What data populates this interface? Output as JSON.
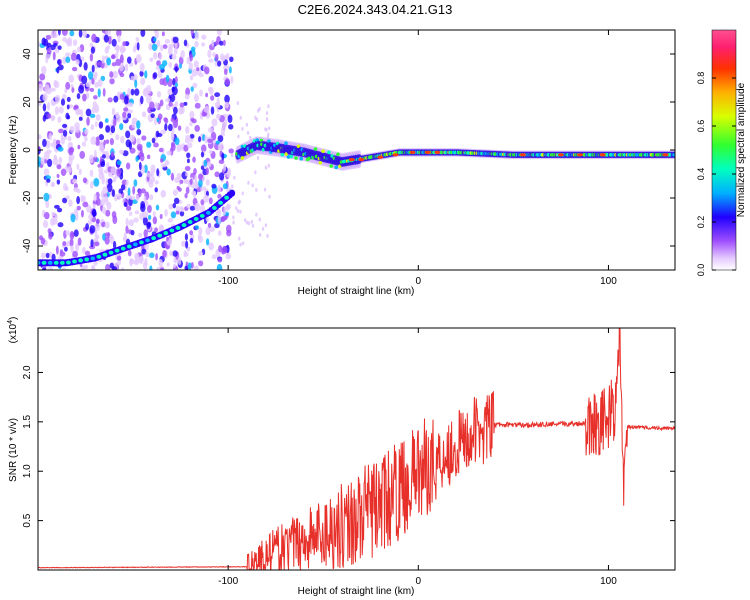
{
  "title": "C2E6.2024.343.04.21.G13",
  "chart_data": [
    {
      "type": "heatmap",
      "xlabel": "Height of straight line (km)",
      "ylabel": "Frequency (Hz)",
      "xlim": [
        -200,
        135
      ],
      "ylim": [
        -50,
        50
      ],
      "xticks": [
        -100,
        0,
        100
      ],
      "yticks": [
        -40,
        -20,
        0,
        20,
        40
      ],
      "colorbar": {
        "label": "Normalized spectral amplitude",
        "range": [
          0,
          1
        ],
        "ticks": [
          "0.0",
          "0.2",
          "0.4",
          "0.6",
          "0.8"
        ]
      },
      "noise_region_x": [
        -200,
        -98
      ],
      "chirp_trace": [
        {
          "x": -200,
          "y": -47
        },
        {
          "x": -185,
          "y": -47
        },
        {
          "x": -170,
          "y": -45
        },
        {
          "x": -155,
          "y": -41
        },
        {
          "x": -140,
          "y": -37
        },
        {
          "x": -125,
          "y": -32
        },
        {
          "x": -110,
          "y": -26
        },
        {
          "x": -98,
          "y": -18
        }
      ],
      "ridge_trace": [
        {
          "x": -95,
          "y": -2
        },
        {
          "x": -85,
          "y": 2
        },
        {
          "x": -75,
          "y": 1
        },
        {
          "x": -60,
          "y": -1
        },
        {
          "x": -40,
          "y": -5
        },
        {
          "x": -25,
          "y": -3
        },
        {
          "x": -10,
          "y": -1
        },
        {
          "x": 0,
          "y": -1
        },
        {
          "x": 20,
          "y": -1
        },
        {
          "x": 50,
          "y": -2
        },
        {
          "x": 80,
          "y": -2
        },
        {
          "x": 100,
          "y": -2
        },
        {
          "x": 110,
          "y": -2
        },
        {
          "x": 135,
          "y": -2
        }
      ]
    },
    {
      "type": "line",
      "xlabel": "Height of straight line (km)",
      "ylabel": "SNR (10 * v/v)",
      "y_multiplier": "(x10^4)",
      "xlim": [
        -200,
        135
      ],
      "ylim": [
        0,
        2.45
      ],
      "xticks": [
        -100,
        0,
        100
      ],
      "yticks": [
        0.5,
        1.0,
        1.5,
        2.0
      ],
      "color": "#e8302a",
      "series": [
        {
          "points": [
            {
              "x": -200,
              "y": 0.02
            },
            {
              "x": -90,
              "y": 0.03
            },
            {
              "x": -80,
              "y": 0.15
            },
            {
              "x": -60,
              "y": 0.3
            },
            {
              "x": -40,
              "y": 0.45
            },
            {
              "x": -25,
              "y": 0.6
            },
            {
              "x": -10,
              "y": 0.8
            },
            {
              "x": 0,
              "y": 1.0
            },
            {
              "x": 10,
              "y": 1.12
            },
            {
              "x": 20,
              "y": 1.25
            },
            {
              "x": 30,
              "y": 1.4
            },
            {
              "x": 40,
              "y": 1.47
            },
            {
              "x": 60,
              "y": 1.47
            },
            {
              "x": 80,
              "y": 1.48
            },
            {
              "x": 90,
              "y": 1.49
            },
            {
              "x": 100,
              "y": 1.52
            },
            {
              "x": 104,
              "y": 1.7
            },
            {
              "x": 106,
              "y": 2.45
            },
            {
              "x": 108,
              "y": 0.75
            },
            {
              "x": 110,
              "y": 1.45
            },
            {
              "x": 135,
              "y": 1.43
            }
          ]
        }
      ]
    }
  ]
}
